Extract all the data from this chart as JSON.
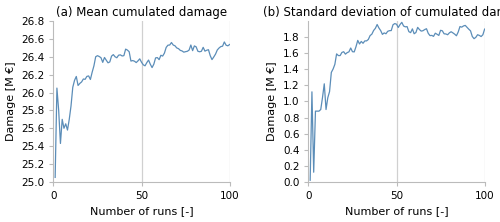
{
  "title_a": "(a) Mean cumulated damage",
  "title_b": "(b) Standard deviation of cumulated damage",
  "xlabel": "Number of runs [-]",
  "ylabel_a": "Damage [M €]",
  "ylabel_b": "Damage [M €]",
  "xlim": [
    0,
    100
  ],
  "ylim_a": [
    25.0,
    26.8
  ],
  "ylim_b": [
    0.0,
    2.0
  ],
  "yticks_a": [
    25.0,
    25.2,
    25.4,
    25.6,
    25.8,
    26.0,
    26.2,
    26.4,
    26.6,
    26.8
  ],
  "yticks_b": [
    0.0,
    0.2,
    0.4,
    0.6,
    0.8,
    1.0,
    1.2,
    1.4,
    1.6,
    1.8
  ],
  "xticks": [
    0,
    50,
    100
  ],
  "line_color": "#5b8db8",
  "vline_color": "#d0d0d0",
  "vlines_a": [
    50,
    100
  ],
  "vlines_b": [
    50,
    100
  ],
  "background_color": "#ffffff"
}
